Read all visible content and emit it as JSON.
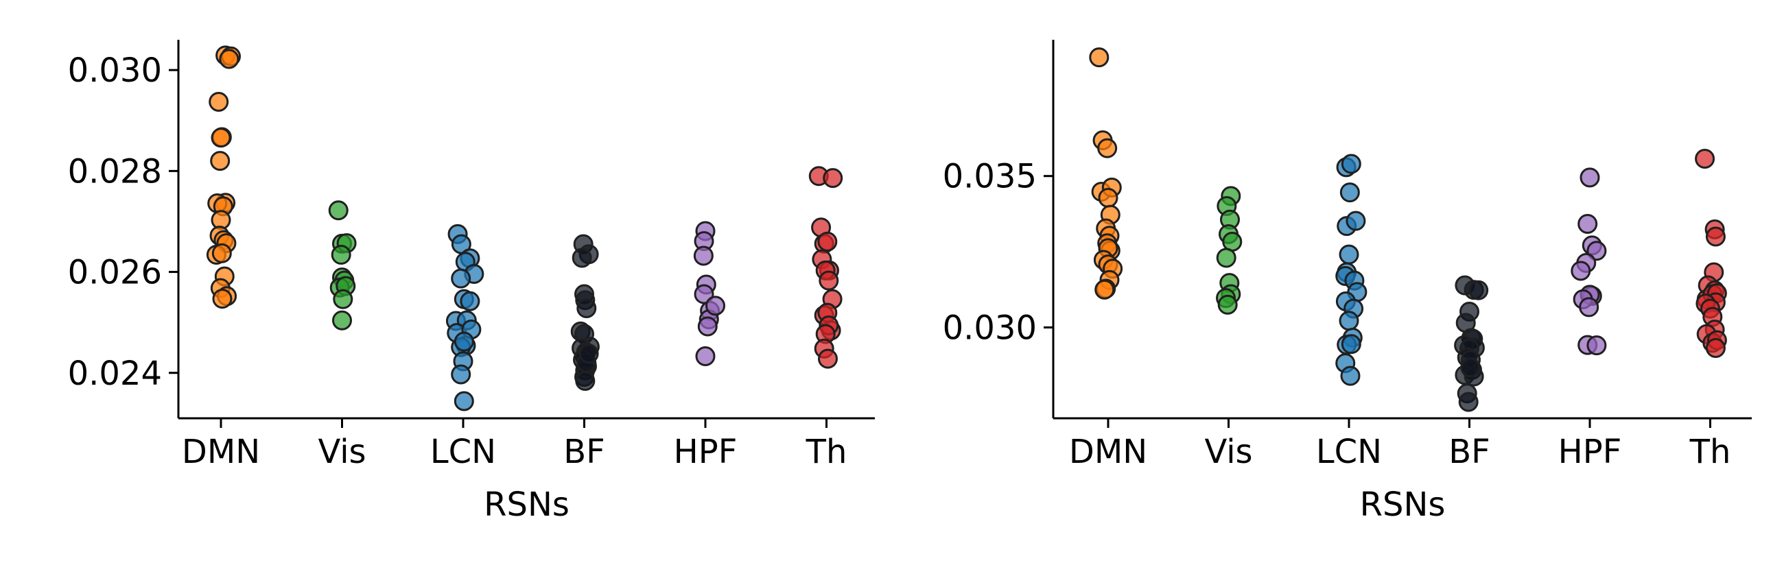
{
  "figure": {
    "description_free": true
  },
  "colors": {
    "DMN": "#ff7f0e",
    "Vis": "#2ca02c",
    "LCN": "#1f77b4",
    "BF": "#0f1520",
    "HPF": "#9467bd",
    "Th": "#d62728"
  },
  "chart_data": [
    {
      "type": "scatter",
      "title": "",
      "xlabel": "RSNs",
      "ylabel": "",
      "categories": [
        "DMN",
        "Vis",
        "LCN",
        "BF",
        "HPF",
        "Th"
      ],
      "ylim": [
        0.0231,
        0.0306
      ],
      "yticks": [
        0.024,
        0.026,
        0.028,
        0.03
      ],
      "ytick_labels": [
        "0.024",
        "0.026",
        "0.028",
        "0.030"
      ],
      "grid": false,
      "series": [
        {
          "category": "DMN",
          "x": [
            0.1,
            0.22,
            0.18,
            -0.05,
            0.02,
            0.0,
            -0.02,
            0.1,
            -0.08,
            0.05,
            0.0,
            -0.03,
            0.06,
            0.12,
            -0.1,
            0.02,
            0.08,
            -0.01,
            0.13,
            0.03
          ],
          "values": [
            0.03029,
            0.03027,
            0.03022,
            0.02937,
            0.02867,
            0.02866,
            0.0282,
            0.02737,
            0.02736,
            0.0273,
            0.02703,
            0.02672,
            0.02663,
            0.02657,
            0.02634,
            0.02637,
            0.02591,
            0.02568,
            0.02552,
            0.02547
          ]
        },
        {
          "category": "Vis",
          "x": [
            -0.08,
            0.0,
            0.1,
            -0.02,
            0.0,
            0.05,
            -0.05,
            0.08,
            0.02,
            0.0
          ],
          "values": [
            0.02722,
            0.02656,
            0.02657,
            0.02634,
            0.02589,
            0.02583,
            0.02569,
            0.02572,
            0.02546,
            0.02504
          ]
        },
        {
          "category": "LCN",
          "x": [
            -0.12,
            -0.04,
            0.15,
            0.05,
            0.24,
            -0.05,
            -0.16,
            0.02,
            0.15,
            0.08,
            -0.14,
            0.18,
            0.06,
            -0.05,
            0.02,
            0.0,
            -0.05,
            0.02
          ],
          "values": [
            0.02675,
            0.02655,
            0.02627,
            0.0262,
            0.02596,
            0.02587,
            0.02503,
            0.02546,
            0.02542,
            0.02504,
            0.02479,
            0.02486,
            0.02454,
            0.02451,
            0.02462,
            0.02423,
            0.02397,
            0.02344
          ]
        },
        {
          "category": "BF",
          "x": [
            -0.02,
            0.1,
            -0.05,
            0.0,
            0.02,
            0.05,
            -0.08,
            0.0,
            0.12,
            -0.06,
            0.04,
            0.01,
            -0.03,
            0.06,
            0.02,
            0.0,
            0.05,
            0.1,
            0.02
          ],
          "values": [
            0.02655,
            0.02635,
            0.02628,
            0.02556,
            0.02544,
            0.02528,
            0.02482,
            0.02477,
            0.02452,
            0.02449,
            0.02441,
            0.02433,
            0.02426,
            0.02413,
            0.02405,
            0.02392,
            0.0242,
            0.02438,
            0.02384
          ]
        },
        {
          "category": "HPF",
          "x": [
            0.0,
            -0.03,
            -0.04,
            0.02,
            -0.03,
            0.1,
            0.08,
            0.05,
            0.22,
            0.0
          ],
          "values": [
            0.02681,
            0.02661,
            0.02632,
            0.02575,
            0.02556,
            0.02523,
            0.02506,
            0.02492,
            0.02533,
            0.02433
          ]
        },
        {
          "category": "Th",
          "x": [
            -0.17,
            0.14,
            -0.12,
            -0.05,
            0.02,
            -0.1,
            0.06,
            -0.02,
            0.05,
            0.13,
            -0.05,
            0.02,
            0.1,
            0.05,
            -0.02,
            -0.05,
            0.03
          ],
          "values": [
            0.0279,
            0.02786,
            0.02688,
            0.02656,
            0.0266,
            0.02625,
            0.02603,
            0.02603,
            0.02583,
            0.02546,
            0.02514,
            0.02519,
            0.02484,
            0.02494,
            0.02477,
            0.02448,
            0.02428
          ]
        }
      ]
    },
    {
      "type": "scatter",
      "title": "",
      "xlabel": "RSNs",
      "ylabel": "",
      "categories": [
        "DMN",
        "Vis",
        "LCN",
        "BF",
        "HPF",
        "Th"
      ],
      "ylim": [
        0.027,
        0.0395
      ],
      "yticks": [
        0.03,
        0.035
      ],
      "ytick_labels": [
        "0.030",
        "0.035"
      ],
      "grid": false,
      "series": [
        {
          "category": "DMN",
          "x": [
            -0.2,
            -0.12,
            -0.02,
            -0.15,
            0.08,
            0.0,
            0.05,
            -0.05,
            0.03,
            -0.02,
            0.05,
            0.0,
            -0.1,
            0.0,
            0.1,
            0.03,
            -0.05,
            -0.08
          ],
          "values": [
            0.03892,
            0.03618,
            0.03592,
            0.03448,
            0.03462,
            0.03428,
            0.03372,
            0.03327,
            0.03303,
            0.03278,
            0.03254,
            0.03262,
            0.03223,
            0.03208,
            0.03194,
            0.03157,
            0.03128,
            0.03125
          ]
        },
        {
          "category": "Vis",
          "x": [
            0.05,
            -0.04,
            0.03,
            0.0,
            0.08,
            -0.05,
            0.02,
            0.05,
            -0.06,
            -0.02
          ],
          "values": [
            0.03434,
            0.03401,
            0.03356,
            0.03308,
            0.03283,
            0.0323,
            0.03147,
            0.0311,
            0.03097,
            0.03075
          ]
        },
        {
          "category": "LCN",
          "x": [
            -0.06,
            0.05,
            0.02,
            -0.05,
            0.15,
            0.0,
            -0.05,
            -0.08,
            0.12,
            0.18,
            -0.07,
            0.1,
            0.0,
            0.08,
            -0.05,
            0.05,
            -0.08,
            0.03
          ],
          "values": [
            0.03529,
            0.0354,
            0.03446,
            0.03335,
            0.03352,
            0.03241,
            0.03182,
            0.0317,
            0.03155,
            0.03117,
            0.03086,
            0.03062,
            0.03022,
            0.02966,
            0.02943,
            0.02945,
            0.02882,
            0.0284
          ]
        },
        {
          "category": "BF",
          "x": [
            -0.1,
            0.1,
            0.2,
            0.0,
            -0.08,
            0.04,
            0.08,
            0.12,
            -0.12,
            0.0,
            -0.05,
            0.03,
            0.06,
            -0.1,
            0.1,
            0.02,
            -0.05,
            -0.02
          ],
          "values": [
            0.03139,
            0.03124,
            0.03123,
            0.03052,
            0.03015,
            0.02965,
            0.02962,
            0.02933,
            0.02941,
            0.0293,
            0.02901,
            0.02893,
            0.0286,
            0.02843,
            0.02838,
            0.02868,
            0.02782,
            0.02754
          ]
        },
        {
          "category": "HPF",
          "x": [
            0.0,
            -0.05,
            0.05,
            0.15,
            -0.08,
            -0.2,
            0.05,
            0.0,
            -0.15,
            -0.02,
            -0.05,
            0.15
          ],
          "values": [
            0.03495,
            0.03342,
            0.03271,
            0.03253,
            0.03213,
            0.03187,
            0.03104,
            0.03108,
            0.03093,
            0.03067,
            0.02942,
            0.02941
          ]
        },
        {
          "category": "Th",
          "x": [
            -0.12,
            0.1,
            0.12,
            0.08,
            -0.05,
            0.1,
            -0.08,
            0.05,
            0.15,
            0.12,
            -0.1,
            0.0,
            0.05,
            0.1,
            -0.08,
            0.05,
            0.15,
            0.12
          ],
          "values": [
            0.03557,
            0.03324,
            0.033,
            0.03182,
            0.03139,
            0.03122,
            0.03093,
            0.0311,
            0.03113,
            0.03083,
            0.03079,
            0.03062,
            0.03035,
            0.02993,
            0.02978,
            0.02949,
            0.02958,
            0.02932
          ]
        }
      ]
    }
  ]
}
